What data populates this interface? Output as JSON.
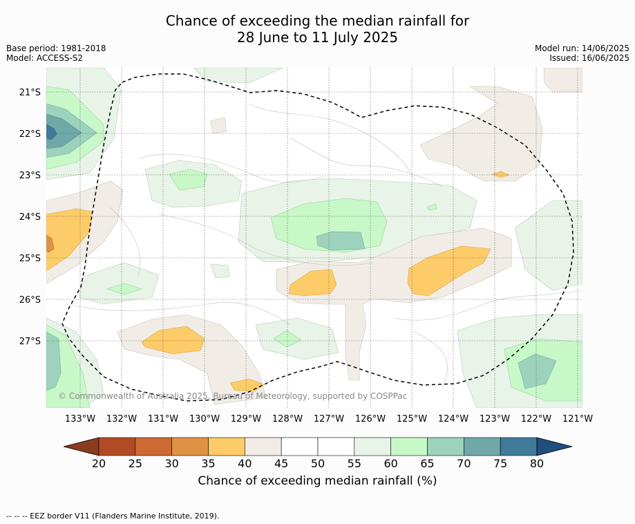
{
  "title_line1": "Chance of exceeding the median rainfall for",
  "title_line2": "28 June to 11 July 2025",
  "base_period": "Base period: 1981-2018",
  "model": "Model: ACCESS-S2",
  "model_run": "Model run: 14/06/2025",
  "issued": "Issued: 16/06/2025",
  "copyright": "© Commonwealth of Australia 2025, Bureau of Meteorology, supported by COSPPac",
  "latitudes": [
    "21°S",
    "22°S",
    "23°S",
    "24°S",
    "25°S",
    "26°S",
    "27°S"
  ],
  "longitudes": [
    "133°W",
    "132°W",
    "131°W",
    "130°W",
    "129°W",
    "128°W",
    "127°W",
    "126°W",
    "125°W",
    "124°W",
    "123°W",
    "122°W",
    "121°W"
  ],
  "colorbar": {
    "ticks": [
      "20",
      "25",
      "30",
      "35",
      "40",
      "45",
      "50",
      "55",
      "60",
      "65",
      "70",
      "75",
      "80"
    ],
    "colors": [
      "#b24a26",
      "#cd6a34",
      "#e09244",
      "#fdcc68",
      "#f1ede6",
      "#ffffff",
      "#ffffff",
      "#e8f4e7",
      "#c8f8c8",
      "#9dd2bc",
      "#6fa8a7",
      "#3f7a9a"
    ],
    "low_color": "#8b3b1e",
    "high_color": "#1f4e7f",
    "label": "Chance of exceeding median rainfall (%)"
  },
  "footer": "--  --  -- EEZ border V11 (Flanders Marine Institute, 2019)."
}
